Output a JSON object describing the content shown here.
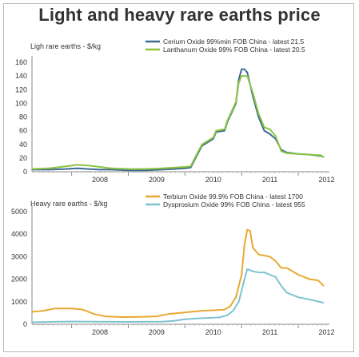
{
  "title": "Light and heavy rare earths price",
  "chart_data": [
    {
      "type": "line",
      "ylabel": "Ligh rare earths - $/kg",
      "ylim": [
        0,
        160
      ],
      "yticks": [
        0,
        20,
        40,
        60,
        80,
        100,
        120,
        140,
        160
      ],
      "xlim": [
        2007.3,
        2012.55
      ],
      "xticks": [
        "2008",
        "2009",
        "2010",
        "2011",
        "2012"
      ],
      "legend_position": "top-right",
      "series": [
        {
          "name": "Cerium Oxide 99%min FOB China - latest 21.5",
          "color": "#3e6b93",
          "x": [
            2007.3,
            2007.6,
            2007.9,
            2008.1,
            2008.3,
            2008.5,
            2008.7,
            2009.0,
            2009.3,
            2009.6,
            2009.8,
            2010.0,
            2010.1,
            2010.2,
            2010.3,
            2010.5,
            2010.55,
            2010.7,
            2010.75,
            2010.9,
            2010.95,
            2011.0,
            2011.05,
            2011.1,
            2011.2,
            2011.3,
            2011.4,
            2011.5,
            2011.6,
            2011.7,
            2011.8,
            2012.0,
            2012.2,
            2012.4,
            2012.45
          ],
          "values": [
            3,
            3,
            4,
            5,
            4,
            3,
            3,
            2,
            2,
            3,
            4,
            5,
            6,
            22,
            38,
            48,
            58,
            60,
            73,
            100,
            135,
            150,
            150,
            145,
            110,
            80,
            60,
            55,
            48,
            32,
            28,
            26,
            25,
            23,
            21.5
          ]
        },
        {
          "name": "Lanthanum Oxide 99% FOB China - latest 20.5",
          "color": "#8bc53f",
          "x": [
            2007.3,
            2007.6,
            2007.9,
            2008.1,
            2008.3,
            2008.5,
            2008.7,
            2009.0,
            2009.3,
            2009.6,
            2009.8,
            2010.0,
            2010.1,
            2010.2,
            2010.3,
            2010.5,
            2010.55,
            2010.7,
            2010.75,
            2010.9,
            2010.95,
            2011.0,
            2011.05,
            2011.1,
            2011.2,
            2011.3,
            2011.4,
            2011.5,
            2011.6,
            2011.7,
            2011.8,
            2012.0,
            2012.2,
            2012.4,
            2012.45
          ],
          "values": [
            4,
            5,
            8,
            10,
            9,
            7,
            5,
            4,
            4,
            5,
            6,
            7,
            8,
            24,
            40,
            50,
            60,
            62,
            75,
            102,
            130,
            140,
            140,
            140,
            115,
            85,
            65,
            62,
            52,
            30,
            27,
            26,
            25,
            24,
            20.5
          ]
        }
      ]
    },
    {
      "type": "line",
      "ylabel": "Heavy rare earths - $/kg",
      "ylim": [
        0,
        5000
      ],
      "yticks": [
        0,
        1000,
        2000,
        3000,
        4000,
        5000
      ],
      "xlim": [
        2007.3,
        2012.55
      ],
      "xticks": [
        "2008",
        "2009",
        "2010",
        "2011",
        "2012"
      ],
      "legend_position": "top-right",
      "series": [
        {
          "name": "Terbium Oxide 99.9% FOB China - latest 1700",
          "color": "#e8a933",
          "x": [
            2007.3,
            2007.5,
            2007.7,
            2008.0,
            2008.2,
            2008.4,
            2008.6,
            2008.9,
            2009.2,
            2009.5,
            2009.7,
            2009.9,
            2010.1,
            2010.3,
            2010.5,
            2010.7,
            2010.8,
            2010.9,
            2011.0,
            2011.05,
            2011.1,
            2011.15,
            2011.2,
            2011.3,
            2011.5,
            2011.6,
            2011.7,
            2011.8,
            2012.0,
            2012.2,
            2012.35,
            2012.45
          ],
          "values": [
            550,
            600,
            700,
            700,
            650,
            450,
            350,
            320,
            330,
            350,
            450,
            500,
            550,
            600,
            620,
            650,
            800,
            1200,
            2200,
            3500,
            4200,
            4150,
            3400,
            3100,
            3000,
            2800,
            2500,
            2500,
            2200,
            2000,
            1950,
            1700
          ]
        },
        {
          "name": "Dysprosium Oxide 99% FOB China - latest 955",
          "color": "#7ec3d1",
          "x": [
            2007.3,
            2007.7,
            2008.0,
            2008.4,
            2008.7,
            2009.0,
            2009.3,
            2009.6,
            2009.8,
            2010.0,
            2010.2,
            2010.4,
            2010.6,
            2010.75,
            2010.85,
            2010.95,
            2011.0,
            2011.05,
            2011.1,
            2011.2,
            2011.3,
            2011.4,
            2011.5,
            2011.6,
            2011.7,
            2011.8,
            2012.0,
            2012.2,
            2012.45
          ],
          "values": [
            90,
            110,
            120,
            115,
            110,
            105,
            110,
            115,
            150,
            220,
            260,
            280,
            300,
            400,
            600,
            1000,
            1500,
            2000,
            2450,
            2350,
            2300,
            2300,
            2200,
            2100,
            1700,
            1400,
            1200,
            1100,
            955
          ]
        }
      ]
    }
  ]
}
